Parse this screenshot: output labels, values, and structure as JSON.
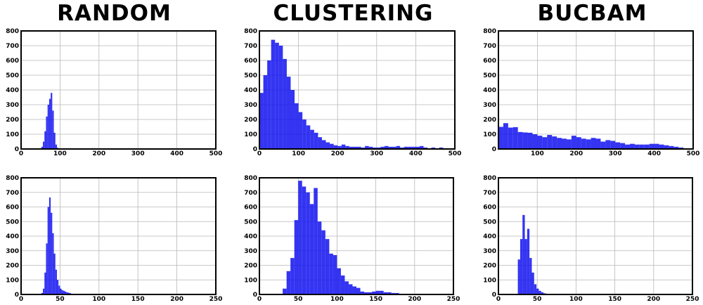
{
  "column_titles": [
    "RANDOM",
    "CLUSTERING",
    "BUCBAM"
  ],
  "style": {
    "bar_color": "#1010f0",
    "grid_color": "#b8b8b8",
    "frame_color": "#000000"
  },
  "chart_data": [
    {
      "type": "bar",
      "title": "RANDOM",
      "xlim": [
        0,
        500
      ],
      "ylim": [
        0,
        800
      ],
      "xticks": [
        0,
        100,
        200,
        300,
        400,
        500
      ],
      "yticks": [
        0,
        100,
        200,
        300,
        400,
        500,
        600,
        700,
        800
      ],
      "grid": true,
      "bin_width": 4,
      "x": [
        48,
        52,
        56,
        60,
        64,
        68,
        72,
        76,
        80,
        84,
        88,
        92,
        96
      ],
      "values": [
        5,
        15,
        50,
        120,
        220,
        300,
        340,
        380,
        260,
        110,
        30,
        8,
        3
      ]
    },
    {
      "type": "bar",
      "title": "CLUSTERING",
      "xlim": [
        0,
        500
      ],
      "ylim": [
        0,
        800
      ],
      "xticks": [
        0,
        100,
        200,
        300,
        400,
        500
      ],
      "yticks": [
        0,
        100,
        200,
        300,
        400,
        500,
        600,
        700,
        800
      ],
      "grid": true,
      "bin_width": 10,
      "x": [
        0,
        10,
        20,
        30,
        40,
        50,
        60,
        70,
        80,
        90,
        100,
        110,
        120,
        130,
        140,
        150,
        160,
        170,
        180,
        190,
        200,
        210,
        220,
        230,
        240,
        250,
        260,
        270,
        280,
        290,
        300,
        310,
        320,
        330,
        340,
        350,
        360,
        370,
        380,
        390,
        400,
        410,
        420,
        430,
        440,
        450,
        460,
        470,
        480,
        490
      ],
      "values": [
        380,
        500,
        600,
        740,
        720,
        700,
        610,
        490,
        400,
        310,
        250,
        200,
        160,
        130,
        110,
        80,
        60,
        45,
        35,
        25,
        20,
        30,
        20,
        15,
        15,
        15,
        10,
        20,
        15,
        10,
        10,
        15,
        20,
        15,
        15,
        20,
        10,
        15,
        15,
        15,
        15,
        20,
        10,
        5,
        10,
        5,
        10,
        5,
        5,
        5
      ]
    },
    {
      "type": "bar",
      "title": "BUCBAM",
      "xlim": [
        0,
        500
      ],
      "ylim": [
        0,
        800
      ],
      "xticks": [
        100,
        200,
        300,
        400,
        500
      ],
      "yticks": [
        0,
        100,
        200,
        300,
        400,
        500,
        600,
        700,
        800
      ],
      "grid": true,
      "bin_width": 12.5,
      "x": [
        0,
        12.5,
        25,
        37.5,
        50,
        62.5,
        75,
        87.5,
        100,
        112.5,
        125,
        137.5,
        150,
        162.5,
        175,
        187.5,
        200,
        212.5,
        225,
        237.5,
        250,
        262.5,
        275,
        287.5,
        300,
        312.5,
        325,
        337.5,
        350,
        362.5,
        375,
        387.5,
        400,
        412.5,
        425,
        437.5,
        450,
        462.5
      ],
      "values": [
        150,
        175,
        145,
        148,
        115,
        112,
        110,
        100,
        90,
        80,
        95,
        85,
        75,
        70,
        65,
        90,
        80,
        70,
        65,
        75,
        70,
        50,
        60,
        55,
        45,
        40,
        30,
        35,
        30,
        30,
        30,
        35,
        35,
        30,
        25,
        20,
        15,
        10
      ]
    },
    {
      "type": "bar",
      "xlim": [
        0,
        250
      ],
      "ylim": [
        0,
        800
      ],
      "xticks": [
        0,
        50,
        100,
        150,
        200,
        250
      ],
      "yticks": [
        0,
        100,
        200,
        300,
        400,
        500,
        600,
        700,
        800
      ],
      "grid": true,
      "bin_width": 2,
      "x": [
        26,
        28,
        30,
        32,
        34,
        36,
        38,
        40,
        42,
        44,
        46,
        48,
        50,
        52,
        54,
        56,
        58,
        60,
        62,
        64,
        66,
        68
      ],
      "values": [
        10,
        40,
        150,
        350,
        600,
        665,
        560,
        420,
        280,
        170,
        100,
        60,
        40,
        30,
        25,
        20,
        15,
        12,
        10,
        5,
        3,
        2
      ]
    },
    {
      "type": "bar",
      "xlim": [
        0,
        250
      ],
      "ylim": [
        0,
        800
      ],
      "xticks": [
        0,
        50,
        100,
        150,
        200,
        250
      ],
      "yticks": [
        0,
        100,
        200,
        300,
        400,
        500,
        600,
        700,
        800
      ],
      "grid": true,
      "bin_width": 5,
      "x": [
        30,
        35,
        40,
        45,
        50,
        55,
        60,
        65,
        70,
        75,
        80,
        85,
        90,
        95,
        100,
        105,
        110,
        115,
        120,
        125,
        130,
        135,
        140,
        145,
        150,
        155,
        160,
        165,
        170,
        175,
        180
      ],
      "values": [
        40,
        160,
        250,
        510,
        780,
        740,
        700,
        620,
        730,
        500,
        440,
        380,
        280,
        270,
        180,
        130,
        90,
        70,
        55,
        45,
        20,
        15,
        15,
        20,
        25,
        25,
        15,
        15,
        10,
        10,
        5
      ]
    },
    {
      "type": "bar",
      "xlim": [
        0,
        250
      ],
      "ylim": [
        0,
        800
      ],
      "xticks": [
        0,
        50,
        100,
        150,
        200,
        250
      ],
      "yticks": [
        0,
        100,
        200,
        300,
        400,
        500,
        600,
        700,
        800
      ],
      "grid": true,
      "bin_width": 3,
      "x": [
        25,
        28,
        31,
        34,
        37,
        40,
        43,
        46,
        49,
        52,
        55,
        58,
        61,
        64
      ],
      "values": [
        240,
        380,
        545,
        380,
        450,
        250,
        150,
        70,
        40,
        25,
        15,
        8,
        5,
        3
      ]
    }
  ]
}
